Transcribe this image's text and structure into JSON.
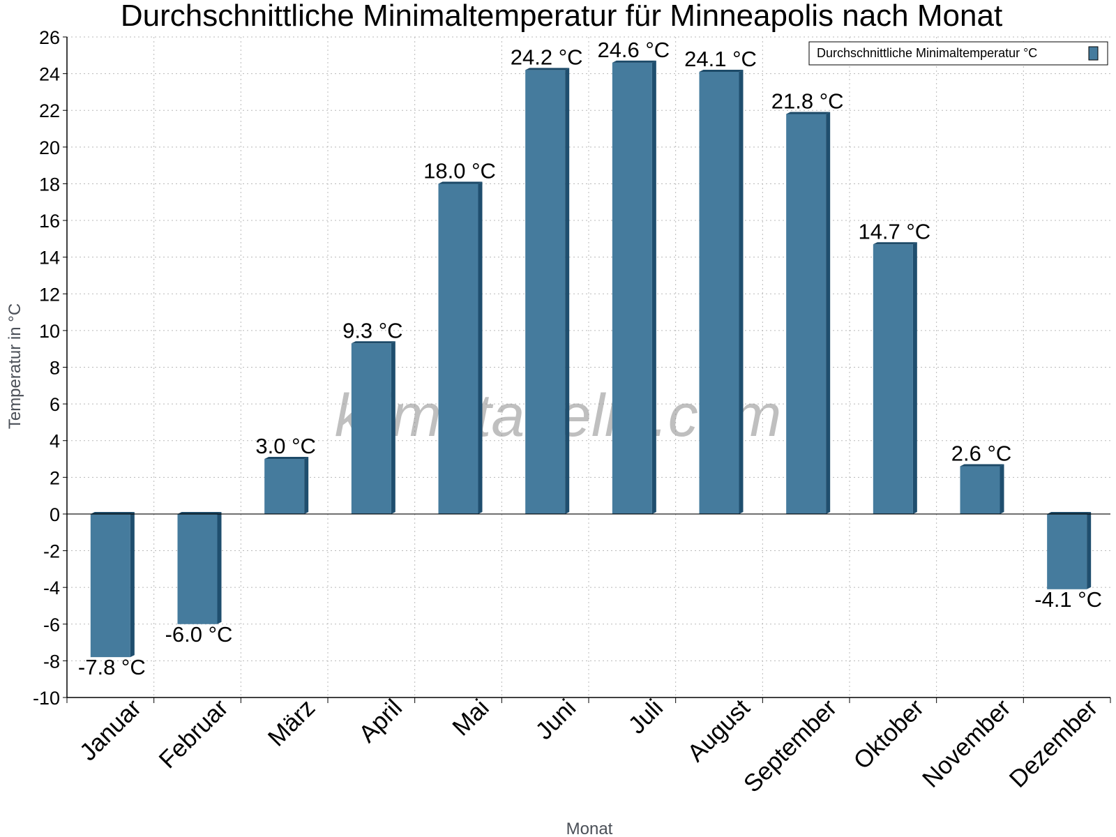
{
  "chart_data": {
    "type": "bar",
    "title": "Durchschnittliche Minimaltemperatur für Minneapolis nach Monat",
    "xlabel": "Monat",
    "ylabel": "Temperatur in °C",
    "categories": [
      "Januar",
      "Februar",
      "März",
      "April",
      "Mai",
      "Juni",
      "Juli",
      "August",
      "September",
      "Oktober",
      "November",
      "Dezember"
    ],
    "series": [
      {
        "name": "Durchschnittliche Minimaltemperatur °C",
        "values": [
          -7.8,
          -6.0,
          3.0,
          9.3,
          18.0,
          24.2,
          24.6,
          24.1,
          21.8,
          14.7,
          2.6,
          -4.1
        ],
        "labels": [
          "-7.8 °C",
          "-6.0 °C",
          "3.0 °C",
          "9.3 °C",
          "18.0 °C",
          "24.2 °C",
          "24.6 °C",
          "24.1 °C",
          "21.8 °C",
          "14.7 °C",
          "2.6 °C",
          "-4.1 °C"
        ]
      }
    ],
    "ylim": [
      -10,
      26
    ],
    "yticks": [
      26,
      24,
      22,
      20,
      18,
      16,
      14,
      12,
      10,
      8,
      6,
      4,
      2,
      0,
      -2,
      -4,
      -6,
      -8,
      -10
    ],
    "grid": true,
    "legend_position": "top-right",
    "colors": {
      "bar_front": "#457b9d",
      "bar_side": "#1f4e6e",
      "bar_top": "#1d4a68",
      "grid": "#b8b8b8",
      "axis": "#000000"
    }
  },
  "watermark": "klimatabelle.com"
}
